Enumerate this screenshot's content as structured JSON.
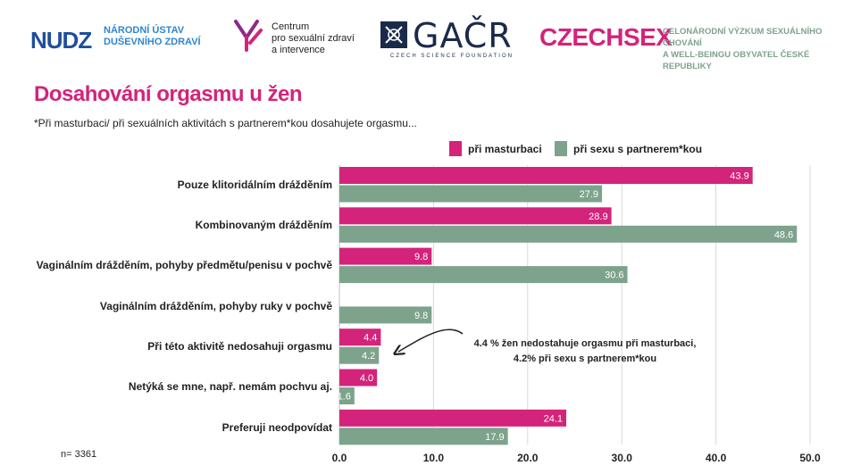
{
  "header": {
    "nudz": {
      "mark": "NUDZ",
      "line1": "NÁRODNÍ ÚSTAV",
      "line2": "DUŠEVNÍHO ZDRAVÍ"
    },
    "centrum": {
      "line1": "Centrum",
      "line2": "pro sexuální zdraví",
      "line3": "a intervence"
    },
    "gacr": {
      "word": "GAČR",
      "sub": "CZECH SCIENCE FOUNDATION"
    },
    "czechsex": {
      "word": "CZECHSEX",
      "line1": "CELONÁRODNÍ VÝZKUM SEXUÁLNÍHO CHOVÁNÍ",
      "line2": "A WELL-BEINGU OBYVATEL ČESKÉ REPUBLIKY"
    }
  },
  "colors": {
    "pink": "#d4237a",
    "green": "#7da38c",
    "grid": "#d9d9d9"
  },
  "sample_note": "n= 3361",
  "annotation": {
    "line1": "4.4 % žen nedostahuje orgasmu při masturbaci,",
    "line2": "4.2% při sexu s partnerem*kou"
  },
  "chart_data": {
    "type": "bar",
    "orientation": "horizontal",
    "title": "Dosahování orgasmu u žen",
    "subtitle": "*Při masturbaci/ při sexuálních aktivitách s partnerem*kou dosahujete orgasmu...",
    "categories": [
      "Pouze klitoridálním drážděním",
      "Kombinovaným drážděním",
      "Vaginálním drážděním, pohyby předmětu/penisu v pochvě",
      "Vaginálním drážděním, pohyby ruky v pochvě",
      "Při této aktivitě nedosahuji orgasmu",
      "Netýká se mne, např. nemám pochvu aj.",
      "Preferuji neodpovídat"
    ],
    "series": [
      {
        "name": "při masturbaci",
        "color": "#d4237a",
        "values": [
          43.9,
          28.9,
          9.8,
          null,
          4.4,
          4.0,
          24.1
        ]
      },
      {
        "name": "při sexu s partnerem*kou",
        "color": "#7da38c",
        "values": [
          27.9,
          48.6,
          30.6,
          9.8,
          4.2,
          1.6,
          17.9
        ]
      }
    ],
    "xlim": [
      0,
      50
    ],
    "xticks": [
      "0.0",
      "10.0",
      "20.0",
      "30.0",
      "40.0",
      "50.0"
    ],
    "legend_position": "top",
    "grid": true
  }
}
